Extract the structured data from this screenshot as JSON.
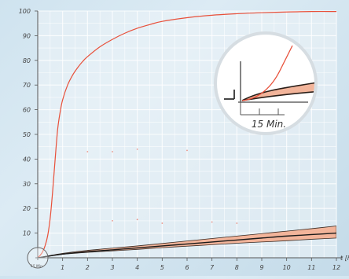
{
  "chart_data": {
    "type": "line",
    "title": "",
    "xlabel": "t [h]",
    "ylabel": "",
    "xlim": [
      0,
      12
    ],
    "ylim": [
      0,
      100
    ],
    "grid": true,
    "x_ticks": [
      "1",
      "2",
      "3",
      "4",
      "5",
      "6",
      "7",
      "8",
      "9",
      "10",
      "11",
      "12"
    ],
    "y_ticks": [
      "10",
      "20",
      "30",
      "40",
      "50",
      "60",
      "70",
      "80",
      "90",
      "100"
    ],
    "series": [
      {
        "color": "#e8503a",
        "x": [
          0,
          0.1,
          0.2,
          0.3,
          0.4,
          0.5,
          0.6,
          0.7,
          0.8,
          0.9,
          1.0,
          1.2,
          1.4,
          1.6,
          1.8,
          2.0,
          2.5,
          3.0,
          3.5,
          4.0,
          4.5,
          5.0,
          6.0,
          7.0,
          8.0,
          9.0,
          10.0,
          11.0,
          12.0
        ],
        "y": [
          0,
          1,
          2.5,
          5,
          9,
          16,
          27,
          40,
          52,
          59,
          64,
          70,
          74,
          77,
          79.5,
          81.5,
          85.5,
          88.5,
          91,
          93,
          94.5,
          95.8,
          97.3,
          98.3,
          98.9,
          99.3,
          99.6,
          99.8,
          99.8
        ]
      },
      {
        "color": "#1a1a1a",
        "x": [
          0,
          1,
          2,
          3,
          4,
          5,
          6,
          7,
          8,
          9,
          10,
          11,
          12
        ],
        "y": [
          0,
          1.5,
          2.5,
          3.2,
          4.0,
          4.8,
          5.6,
          6.4,
          7.2,
          8.0,
          8.8,
          9.4,
          10.0
        ]
      }
    ],
    "band": {
      "color": "#f2b49a",
      "x": [
        0,
        1,
        2,
        3,
        4,
        5,
        6,
        7,
        8,
        9,
        10,
        11,
        12
      ],
      "upper": [
        0,
        1.8,
        3.0,
        3.9,
        4.8,
        5.8,
        6.8,
        7.8,
        8.8,
        9.8,
        10.8,
        11.8,
        12.9
      ],
      "lower": [
        0,
        1.4,
        2.2,
        2.8,
        3.4,
        4.1,
        4.7,
        5.3,
        5.9,
        6.4,
        6.9,
        7.5,
        8.0
      ]
    },
    "inset": {
      "label": "15 Min."
    },
    "origin_label": "15 Min."
  }
}
